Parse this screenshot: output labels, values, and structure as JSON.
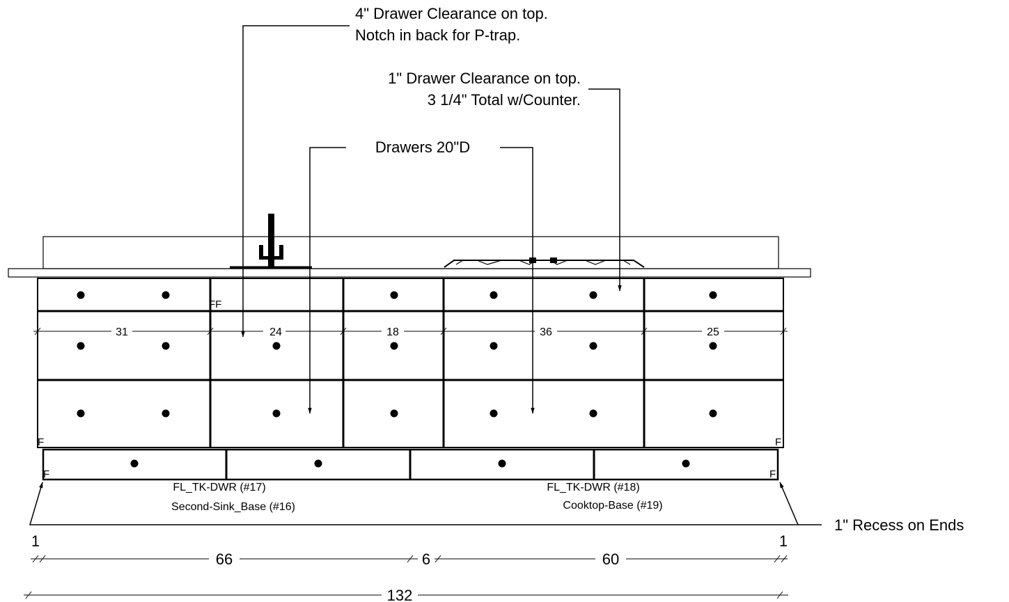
{
  "notes": {
    "clearance_top_line1": "4\" Drawer Clearance on top.",
    "clearance_top_line2": "Notch in back for P-trap.",
    "clearance_one_line1": "1\" Drawer Clearance on top.",
    "clearance_one_line2": "3 1/4\" Total w/Counter.",
    "drawers_depth": "Drawers 20\"D",
    "recess": "1\" Recess on Ends"
  },
  "labels": {
    "left_toekick": "FL_TK-DWR (#17)",
    "left_base": "Second-Sink_Base (#16)",
    "right_toekick": "FL_TK-DWR (#18)",
    "right_base": "Cooktop-Base (#19)",
    "ff_mark": "FF",
    "f_mark_left": "F",
    "f_mark_right": "F",
    "f_mark_left_low": "F",
    "f_mark_right_low": "F"
  },
  "cabinet_widths": {
    "w1": "31",
    "w2": "24",
    "w3": "18",
    "w4": "36",
    "w5": "25"
  },
  "bottom_dims": {
    "left_recess": "1",
    "right_recess": "1",
    "left_base": "66",
    "gap": "6",
    "right_base": "60",
    "total": "132"
  }
}
